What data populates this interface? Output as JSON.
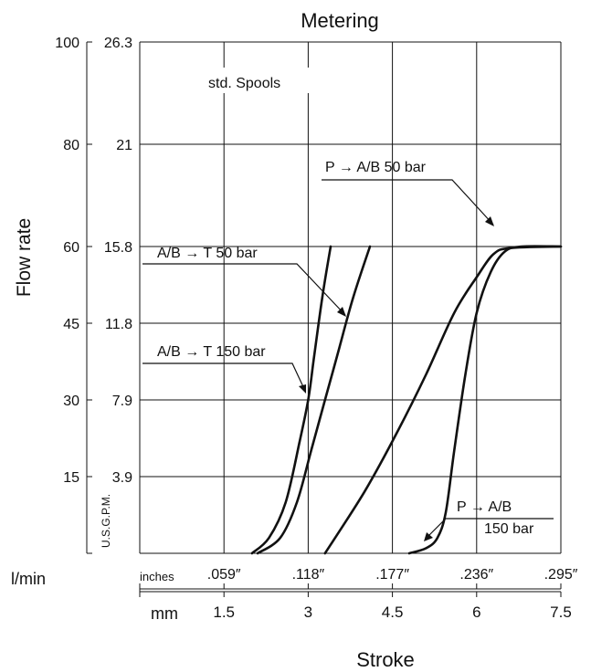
{
  "chart_data": {
    "type": "line",
    "title": "Metering",
    "ylabel": "Flow rate",
    "xlabel": "Stroke",
    "y_unit_lpm": "l/min",
    "y_unit_gpm": "U.S.G.P.M.",
    "x_unit_inches": "inches",
    "x_unit_mm": "mm",
    "xlim_mm": [
      0,
      7.5
    ],
    "ylim_lpm": [
      0,
      100
    ],
    "grid": true,
    "y_ticks_lpm": [
      "100",
      "80",
      "60",
      "45",
      "30",
      "15"
    ],
    "y_ticks_lpm_values": [
      100,
      80,
      60,
      45,
      30,
      15
    ],
    "y_ticks_gpm": [
      "26.3",
      "21",
      "15.8",
      "11.8",
      "7.9",
      "3.9"
    ],
    "y_ticks_gpm_values": [
      100,
      80,
      60,
      45,
      30,
      15
    ],
    "x_ticks_inches": [
      ".059″",
      ".118″",
      ".177″",
      ".236″",
      ".295″"
    ],
    "x_ticks_mm": [
      "1.5",
      "3",
      "4.5",
      "6",
      "7.5"
    ],
    "x_ticks_values": [
      1.5,
      3,
      4.5,
      6,
      7.5
    ],
    "annotations": {
      "std_spools": "std. Spools",
      "ab_t_50": "A/B → T 50 bar",
      "ab_t_150": "A/B → T 150 bar",
      "p_ab_50": "P → A/B 50 bar",
      "p_ab_150_line1": "P  → A/B",
      "p_ab_150_line2": "150 bar"
    },
    "series": [
      {
        "name": "A/B → T 150 bar",
        "points": [
          [
            2.0,
            0
          ],
          [
            2.3,
            3
          ],
          [
            2.6,
            10
          ],
          [
            2.85,
            22
          ],
          [
            3.0,
            30
          ],
          [
            3.1,
            38
          ],
          [
            3.25,
            50
          ],
          [
            3.4,
            60
          ]
        ]
      },
      {
        "name": "A/B → T 50 bar",
        "points": [
          [
            2.1,
            0
          ],
          [
            2.5,
            3
          ],
          [
            2.8,
            10
          ],
          [
            3.05,
            20
          ],
          [
            3.3,
            30
          ],
          [
            3.55,
            40
          ],
          [
            3.8,
            50
          ],
          [
            4.1,
            60
          ]
        ]
      },
      {
        "name": "P → A/B 50 bar",
        "points": [
          [
            3.3,
            0
          ],
          [
            4.0,
            12
          ],
          [
            4.6,
            24
          ],
          [
            5.1,
            35
          ],
          [
            5.6,
            47
          ],
          [
            6.0,
            54
          ],
          [
            6.3,
            58.5
          ],
          [
            6.6,
            59.7
          ],
          [
            7.5,
            60
          ]
        ]
      },
      {
        "name": "P → A/B 150 bar",
        "points": [
          [
            4.8,
            0
          ],
          [
            5.1,
            1
          ],
          [
            5.3,
            3
          ],
          [
            5.45,
            8
          ],
          [
            5.6,
            20
          ],
          [
            5.8,
            35
          ],
          [
            6.0,
            47
          ],
          [
            6.25,
            55
          ],
          [
            6.5,
            59
          ],
          [
            6.8,
            60
          ],
          [
            7.5,
            60
          ]
        ]
      }
    ]
  }
}
